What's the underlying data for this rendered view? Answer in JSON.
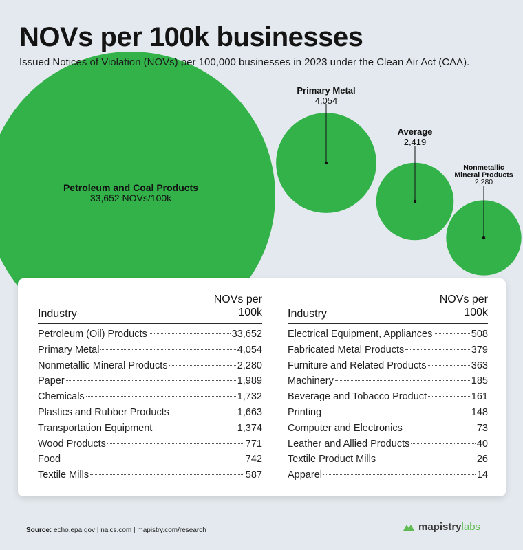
{
  "title": "NOVs per 100k businesses",
  "subtitle": "Issued Notices of Violation (NOVs) per 100,000 businesses in 2023 under the Clean Air Act (CAA).",
  "colors": {
    "bubble": "#33b24a",
    "background": "#e3e9ee",
    "brand_accent": "#5dbb52"
  },
  "chart_data": {
    "type": "bubble",
    "bubbles": [
      {
        "label": "Petroleum and Coal Products",
        "value": 33652,
        "value_text": "33,652 NOVs/100k"
      },
      {
        "label": "Primary Metal",
        "value": 4054,
        "value_text": "4,054"
      },
      {
        "label": "Average",
        "value": 2419,
        "value_text": "2,419"
      },
      {
        "label": "Nonmetallic Mineral Products",
        "value": 2280,
        "value_text": "2,280",
        "label_lines": [
          "Nonmetallic",
          "Mineral Products"
        ]
      }
    ]
  },
  "table": {
    "header_industry": "Industry",
    "header_value": "NOVs per\n100k",
    "left": [
      {
        "name": "Petroleum (Oil) Products",
        "value": "33,652"
      },
      {
        "name": "Primary Metal",
        "value": "4,054"
      },
      {
        "name": "Nonmetallic Mineral Products",
        "value": "2,280"
      },
      {
        "name": "Paper",
        "value": "1,989"
      },
      {
        "name": "Chemicals",
        "value": "1,732"
      },
      {
        "name": "Plastics and Rubber Products",
        "value": "1,663"
      },
      {
        "name": "Transportation Equipment",
        "value": "1,374"
      },
      {
        "name": "Wood Products",
        "value": "771"
      },
      {
        "name": "Food",
        "value": "742"
      },
      {
        "name": "Textile Mills",
        "value": "587"
      }
    ],
    "right": [
      {
        "name": "Electrical Equipment, Appliances",
        "value": "508"
      },
      {
        "name": "Fabricated Metal Products",
        "value": "379"
      },
      {
        "name": "Furniture and Related Products",
        "value": "363"
      },
      {
        "name": "Machinery",
        "value": "185"
      },
      {
        "name": "Beverage and Tobacco Product",
        "value": "161"
      },
      {
        "name": "Printing",
        "value": "148"
      },
      {
        "name": "Computer and Electronics",
        "value": "73"
      },
      {
        "name": "Leather and Allied Products",
        "value": "40"
      },
      {
        "name": "Textile Product Mills",
        "value": "26"
      },
      {
        "name": "Apparel",
        "value": "14"
      }
    ]
  },
  "footer": {
    "source_label": "Source:",
    "source_text": " echo.epa.gov | naics.com | mapistry.com/research",
    "brand_name": "mapistry",
    "brand_suffix": "labs",
    "brand_icon": "mapistry-logo-icon"
  }
}
